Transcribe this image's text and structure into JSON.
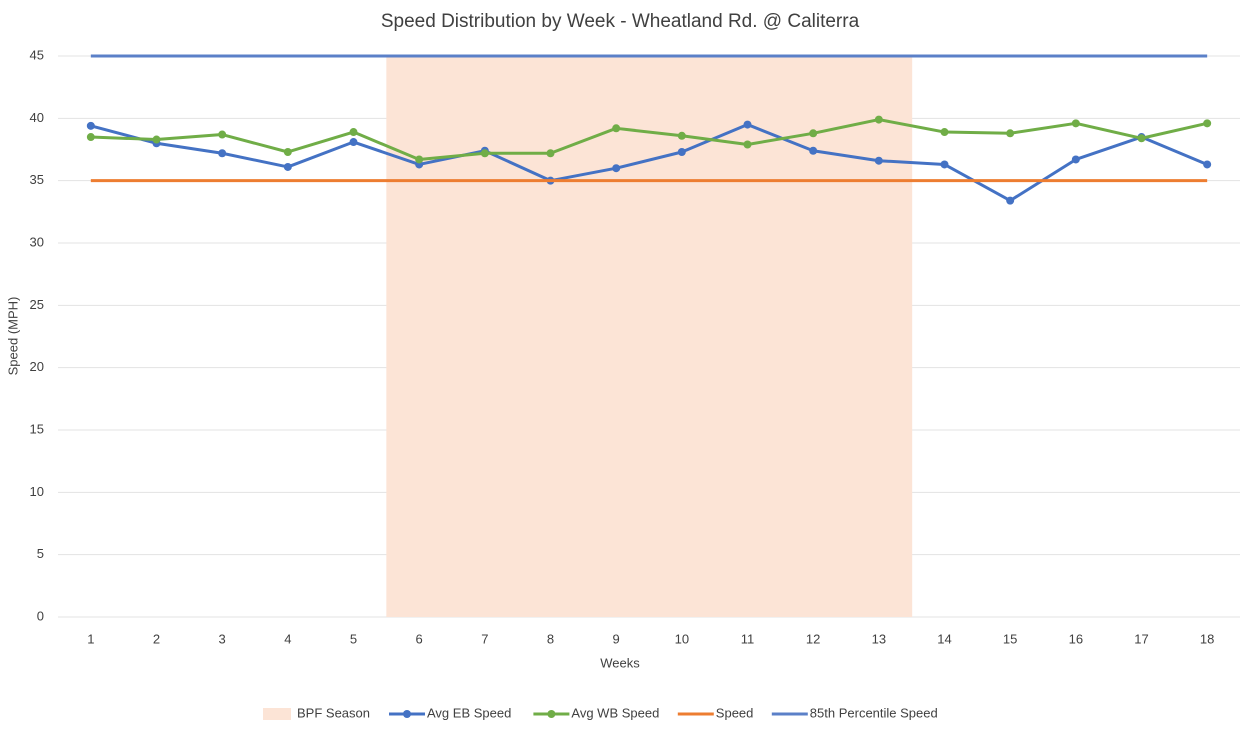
{
  "chart_data": {
    "type": "line",
    "title": "Speed Distribution by Week - Wheatland Rd. @ Caliterra",
    "x_label": "Weeks",
    "y_label": "Speed (MPH)",
    "categories": [
      1,
      2,
      3,
      4,
      5,
      6,
      7,
      8,
      9,
      10,
      11,
      12,
      13,
      14,
      15,
      16,
      17,
      18
    ],
    "ylim": [
      0,
      45
    ],
    "yticks": [
      0,
      5,
      10,
      15,
      20,
      25,
      30,
      35,
      40,
      45
    ],
    "grid": true,
    "legend": "bottom",
    "series": [
      {
        "name": "BPF Season",
        "type": "bar",
        "color": "#fce4d6",
        "values": [
          null,
          null,
          null,
          null,
          null,
          45,
          45,
          45,
          45,
          45,
          45,
          45,
          45,
          null,
          null,
          null,
          null,
          null
        ]
      },
      {
        "name": "Avg EB Speed",
        "type": "line",
        "marker": true,
        "color": "#4472c4",
        "values": [
          39.4,
          38.0,
          37.2,
          36.1,
          38.1,
          36.3,
          37.4,
          35.0,
          36.0,
          37.3,
          39.5,
          37.4,
          36.6,
          36.3,
          33.4,
          36.7,
          38.5,
          36.3
        ]
      },
      {
        "name": "Avg WB Speed",
        "type": "line",
        "marker": true,
        "color": "#70ad47",
        "values": [
          38.5,
          38.3,
          38.7,
          37.3,
          38.9,
          36.7,
          37.2,
          37.2,
          39.2,
          38.6,
          37.9,
          38.8,
          39.9,
          38.9,
          38.8,
          39.6,
          38.4,
          39.6
        ]
      },
      {
        "name": "Speed",
        "type": "line",
        "marker": false,
        "color": "#ed7d31",
        "values": [
          35,
          35,
          35,
          35,
          35,
          35,
          35,
          35,
          35,
          35,
          35,
          35,
          35,
          35,
          35,
          35,
          35,
          35
        ]
      },
      {
        "name": "85th Percentile Speed",
        "type": "line",
        "marker": false,
        "color": "#5b80c8",
        "values": [
          45,
          45,
          45,
          45,
          45,
          45,
          45,
          45,
          45,
          45,
          45,
          45,
          45,
          45,
          45,
          45,
          45,
          45
        ]
      }
    ]
  }
}
